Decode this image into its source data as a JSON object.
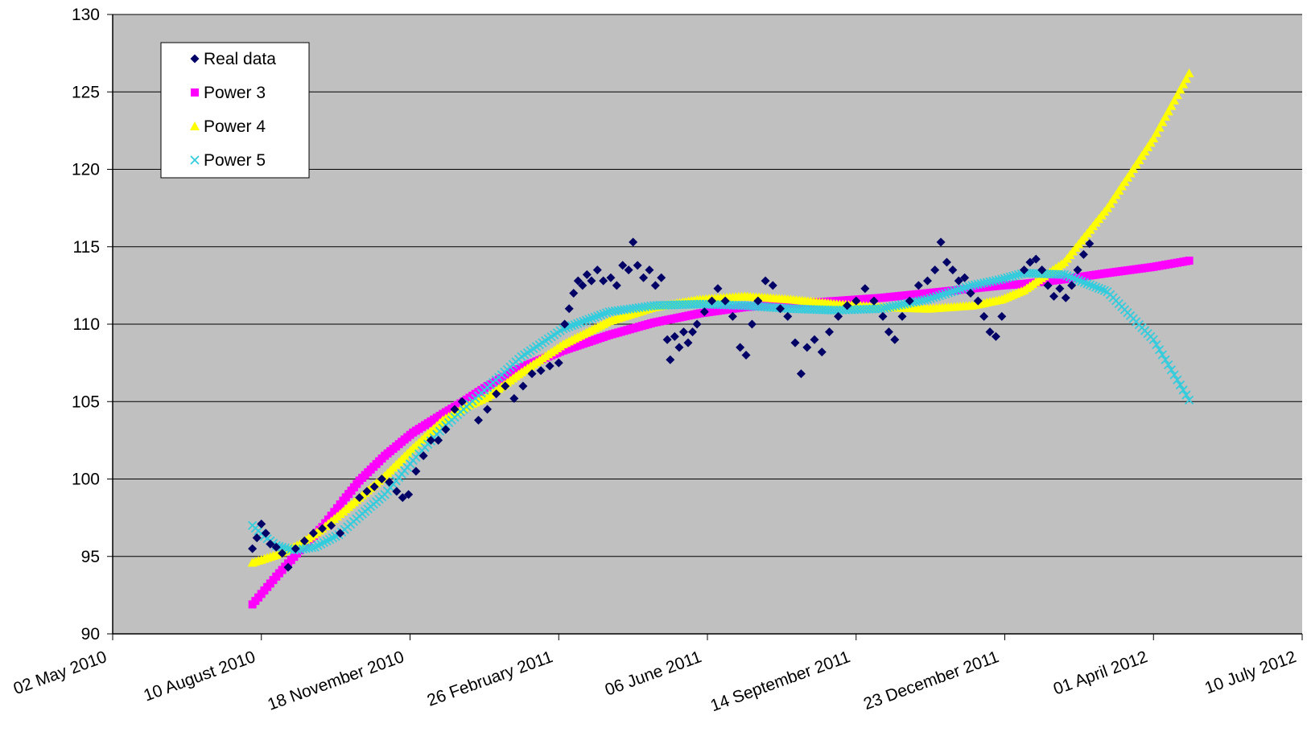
{
  "chart_data": {
    "type": "scatter",
    "title": "",
    "xlabel": "",
    "ylabel": "",
    "grid": true,
    "legend_position": "top-left",
    "plot_background": "#c0c0c0",
    "x_ticks": [
      "02 May 2010",
      "10 August 2010",
      "18 November 2010",
      "26 February 2011",
      "06 June 2011",
      "14 September 2011",
      "23 December 2011",
      "01 April 2012",
      "10 July 2012"
    ],
    "y_ticks": [
      90,
      95,
      100,
      105,
      110,
      115,
      120,
      125,
      130
    ],
    "xlim": [
      "2010-05-02",
      "2012-07-10"
    ],
    "ylim": [
      90,
      130
    ],
    "series": [
      {
        "name": "Real data",
        "color": "#000066",
        "marker": "diamond",
        "points": [
          [
            "2010-08-04",
            95.5
          ],
          [
            "2010-08-07",
            96.2
          ],
          [
            "2010-08-10",
            97.1
          ],
          [
            "2010-08-13",
            96.5
          ],
          [
            "2010-08-16",
            95.8
          ],
          [
            "2010-08-20",
            95.6
          ],
          [
            "2010-08-24",
            95.2
          ],
          [
            "2010-08-28",
            94.3
          ],
          [
            "2010-09-02",
            95.5
          ],
          [
            "2010-09-08",
            96.0
          ],
          [
            "2010-09-14",
            96.5
          ],
          [
            "2010-09-20",
            96.8
          ],
          [
            "2010-09-26",
            97.0
          ],
          [
            "2010-10-02",
            96.5
          ],
          [
            "2010-10-15",
            98.8
          ],
          [
            "2010-10-20",
            99.2
          ],
          [
            "2010-10-25",
            99.5
          ],
          [
            "2010-10-30",
            100.0
          ],
          [
            "2010-11-04",
            99.8
          ],
          [
            "2010-11-09",
            99.2
          ],
          [
            "2010-11-13",
            98.8
          ],
          [
            "2010-11-17",
            99.0
          ],
          [
            "2010-11-22",
            100.5
          ],
          [
            "2010-11-27",
            101.5
          ],
          [
            "2010-12-02",
            102.5
          ],
          [
            "2010-12-07",
            102.5
          ],
          [
            "2010-12-12",
            103.2
          ],
          [
            "2010-12-18",
            104.5
          ],
          [
            "2010-12-23",
            105.0
          ],
          [
            "2011-01-03",
            103.8
          ],
          [
            "2011-01-09",
            104.5
          ],
          [
            "2011-01-15",
            105.5
          ],
          [
            "2011-01-21",
            106.0
          ],
          [
            "2011-01-27",
            105.2
          ],
          [
            "2011-02-02",
            106.0
          ],
          [
            "2011-02-08",
            106.8
          ],
          [
            "2011-02-14",
            107.0
          ],
          [
            "2011-02-20",
            107.3
          ],
          [
            "2011-02-26",
            107.5
          ],
          [
            "2011-03-02",
            110.0
          ],
          [
            "2011-03-05",
            111.0
          ],
          [
            "2011-03-08",
            112.0
          ],
          [
            "2011-03-11",
            112.8
          ],
          [
            "2011-03-14",
            112.5
          ],
          [
            "2011-03-17",
            113.2
          ],
          [
            "2011-03-20",
            112.8
          ],
          [
            "2011-03-24",
            113.5
          ],
          [
            "2011-03-28",
            112.8
          ],
          [
            "2011-04-02",
            113.0
          ],
          [
            "2011-04-06",
            112.5
          ],
          [
            "2011-04-10",
            113.8
          ],
          [
            "2011-04-14",
            113.5
          ],
          [
            "2011-04-17",
            115.3
          ],
          [
            "2011-04-20",
            113.8
          ],
          [
            "2011-04-24",
            113.0
          ],
          [
            "2011-04-28",
            113.5
          ],
          [
            "2011-05-02",
            112.5
          ],
          [
            "2011-05-06",
            113.0
          ],
          [
            "2011-05-10",
            109.0
          ],
          [
            "2011-05-12",
            107.7
          ],
          [
            "2011-05-15",
            109.2
          ],
          [
            "2011-05-18",
            108.5
          ],
          [
            "2011-05-21",
            109.5
          ],
          [
            "2011-05-24",
            108.8
          ],
          [
            "2011-05-27",
            109.5
          ],
          [
            "2011-05-30",
            110.0
          ],
          [
            "2011-06-04",
            110.8
          ],
          [
            "2011-06-09",
            111.5
          ],
          [
            "2011-06-13",
            112.3
          ],
          [
            "2011-06-18",
            111.5
          ],
          [
            "2011-06-23",
            110.5
          ],
          [
            "2011-06-28",
            108.5
          ],
          [
            "2011-07-02",
            108.0
          ],
          [
            "2011-07-06",
            110.0
          ],
          [
            "2011-07-10",
            111.5
          ],
          [
            "2011-07-15",
            112.8
          ],
          [
            "2011-07-20",
            112.5
          ],
          [
            "2011-07-25",
            111.0
          ],
          [
            "2011-07-30",
            110.5
          ],
          [
            "2011-08-04",
            108.8
          ],
          [
            "2011-08-08",
            106.8
          ],
          [
            "2011-08-12",
            108.5
          ],
          [
            "2011-08-17",
            109.0
          ],
          [
            "2011-08-22",
            108.2
          ],
          [
            "2011-08-27",
            109.5
          ],
          [
            "2011-09-02",
            110.5
          ],
          [
            "2011-09-08",
            111.2
          ],
          [
            "2011-09-14",
            111.5
          ],
          [
            "2011-09-20",
            112.3
          ],
          [
            "2011-09-26",
            111.5
          ],
          [
            "2011-10-02",
            110.5
          ],
          [
            "2011-10-06",
            109.5
          ],
          [
            "2011-10-10",
            109.0
          ],
          [
            "2011-10-15",
            110.5
          ],
          [
            "2011-10-20",
            111.5
          ],
          [
            "2011-10-26",
            112.5
          ],
          [
            "2011-11-01",
            112.8
          ],
          [
            "2011-11-06",
            113.5
          ],
          [
            "2011-11-10",
            115.3
          ],
          [
            "2011-11-14",
            114.0
          ],
          [
            "2011-11-18",
            113.5
          ],
          [
            "2011-11-22",
            112.8
          ],
          [
            "2011-11-26",
            113.0
          ],
          [
            "2011-11-30",
            112.0
          ],
          [
            "2011-12-05",
            111.5
          ],
          [
            "2011-12-09",
            110.5
          ],
          [
            "2011-12-13",
            109.5
          ],
          [
            "2011-12-17",
            109.2
          ],
          [
            "2011-12-21",
            110.5
          ],
          [
            "2012-01-05",
            113.5
          ],
          [
            "2012-01-09",
            114.0
          ],
          [
            "2012-01-13",
            114.2
          ],
          [
            "2012-01-17",
            113.5
          ],
          [
            "2012-01-21",
            112.5
          ],
          [
            "2012-01-25",
            111.8
          ],
          [
            "2012-01-29",
            112.3
          ],
          [
            "2012-02-02",
            111.7
          ],
          [
            "2012-02-06",
            112.5
          ],
          [
            "2012-02-10",
            113.5
          ],
          [
            "2012-02-14",
            114.5
          ],
          [
            "2012-02-18",
            115.2
          ]
        ]
      },
      {
        "name": "Power 3",
        "color": "#ff00ff",
        "marker": "square",
        "points": [
          [
            "2010-08-04",
            91.9
          ],
          [
            "2010-08-20",
            93.7
          ],
          [
            "2010-09-05",
            95.4
          ],
          [
            "2010-09-20",
            96.9
          ],
          [
            "2010-10-04",
            98.6
          ],
          [
            "2010-10-15",
            99.9
          ],
          [
            "2010-11-01",
            101.5
          ],
          [
            "2010-11-20",
            103.0
          ],
          [
            "2010-12-10",
            104.2
          ],
          [
            "2010-12-24",
            105.0
          ],
          [
            "2011-01-09",
            106.0
          ],
          [
            "2011-02-01",
            107.2
          ],
          [
            "2011-03-01",
            108.3
          ],
          [
            "2011-04-01",
            109.3
          ],
          [
            "2011-05-01",
            110.1
          ],
          [
            "2011-06-01",
            110.7
          ],
          [
            "2011-07-01",
            111.1
          ],
          [
            "2011-08-01",
            111.3
          ],
          [
            "2011-09-01",
            111.5
          ],
          [
            "2011-10-01",
            111.7
          ],
          [
            "2011-11-01",
            112.0
          ],
          [
            "2011-12-01",
            112.3
          ],
          [
            "2011-12-21",
            112.5
          ],
          [
            "2012-01-05",
            112.6
          ],
          [
            "2012-02-01",
            112.9
          ],
          [
            "2012-03-01",
            113.3
          ],
          [
            "2012-04-01",
            113.7
          ],
          [
            "2012-04-25",
            114.1
          ]
        ]
      },
      {
        "name": "Power 4",
        "color": "#ffff00",
        "marker": "triangle",
        "points": [
          [
            "2010-08-04",
            94.6
          ],
          [
            "2010-08-20",
            95.1
          ],
          [
            "2010-09-05",
            95.8
          ],
          [
            "2010-09-20",
            96.8
          ],
          [
            "2010-10-04",
            97.9
          ],
          [
            "2010-10-15",
            98.8
          ],
          [
            "2010-11-01",
            100.2
          ],
          [
            "2010-11-20",
            102.0
          ],
          [
            "2010-12-10",
            103.8
          ],
          [
            "2010-12-24",
            104.6
          ],
          [
            "2011-01-09",
            105.3
          ],
          [
            "2011-02-01",
            106.9
          ],
          [
            "2011-03-01",
            108.7
          ],
          [
            "2011-04-01",
            110.2
          ],
          [
            "2011-05-01",
            111.1
          ],
          [
            "2011-06-01",
            111.6
          ],
          [
            "2011-07-01",
            111.8
          ],
          [
            "2011-08-01",
            111.6
          ],
          [
            "2011-09-01",
            111.3
          ],
          [
            "2011-10-01",
            111.1
          ],
          [
            "2011-11-01",
            111.0
          ],
          [
            "2011-12-01",
            111.2
          ],
          [
            "2011-12-21",
            111.6
          ],
          [
            "2012-01-05",
            112.2
          ],
          [
            "2012-02-01",
            114.0
          ],
          [
            "2012-03-01",
            117.5
          ],
          [
            "2012-04-01",
            122.0
          ],
          [
            "2012-04-25",
            126.2
          ]
        ]
      },
      {
        "name": "Power 5",
        "color": "#33ccdd",
        "marker": "x",
        "points": [
          [
            "2010-08-04",
            97.0
          ],
          [
            "2010-08-12",
            96.3
          ],
          [
            "2010-08-20",
            95.7
          ],
          [
            "2010-09-01",
            95.4
          ],
          [
            "2010-09-15",
            95.6
          ],
          [
            "2010-10-01",
            96.4
          ],
          [
            "2010-10-15",
            97.6
          ],
          [
            "2010-11-01",
            99.0
          ],
          [
            "2010-11-20",
            101.2
          ],
          [
            "2010-12-10",
            103.3
          ],
          [
            "2010-12-24",
            104.5
          ],
          [
            "2011-01-09",
            105.9
          ],
          [
            "2011-02-01",
            107.9
          ],
          [
            "2011-03-01",
            109.7
          ],
          [
            "2011-04-01",
            110.8
          ],
          [
            "2011-05-01",
            111.2
          ],
          [
            "2011-06-01",
            111.3
          ],
          [
            "2011-07-01",
            111.2
          ],
          [
            "2011-08-01",
            111.0
          ],
          [
            "2011-09-01",
            110.9
          ],
          [
            "2011-10-01",
            111.0
          ],
          [
            "2011-11-01",
            111.6
          ],
          [
            "2011-12-01",
            112.5
          ],
          [
            "2011-12-21",
            112.9
          ],
          [
            "2012-01-05",
            113.3
          ],
          [
            "2012-02-01",
            113.2
          ],
          [
            "2012-03-01",
            112.1
          ],
          [
            "2012-04-01",
            109.0
          ],
          [
            "2012-04-25",
            105.1
          ]
        ]
      }
    ]
  }
}
